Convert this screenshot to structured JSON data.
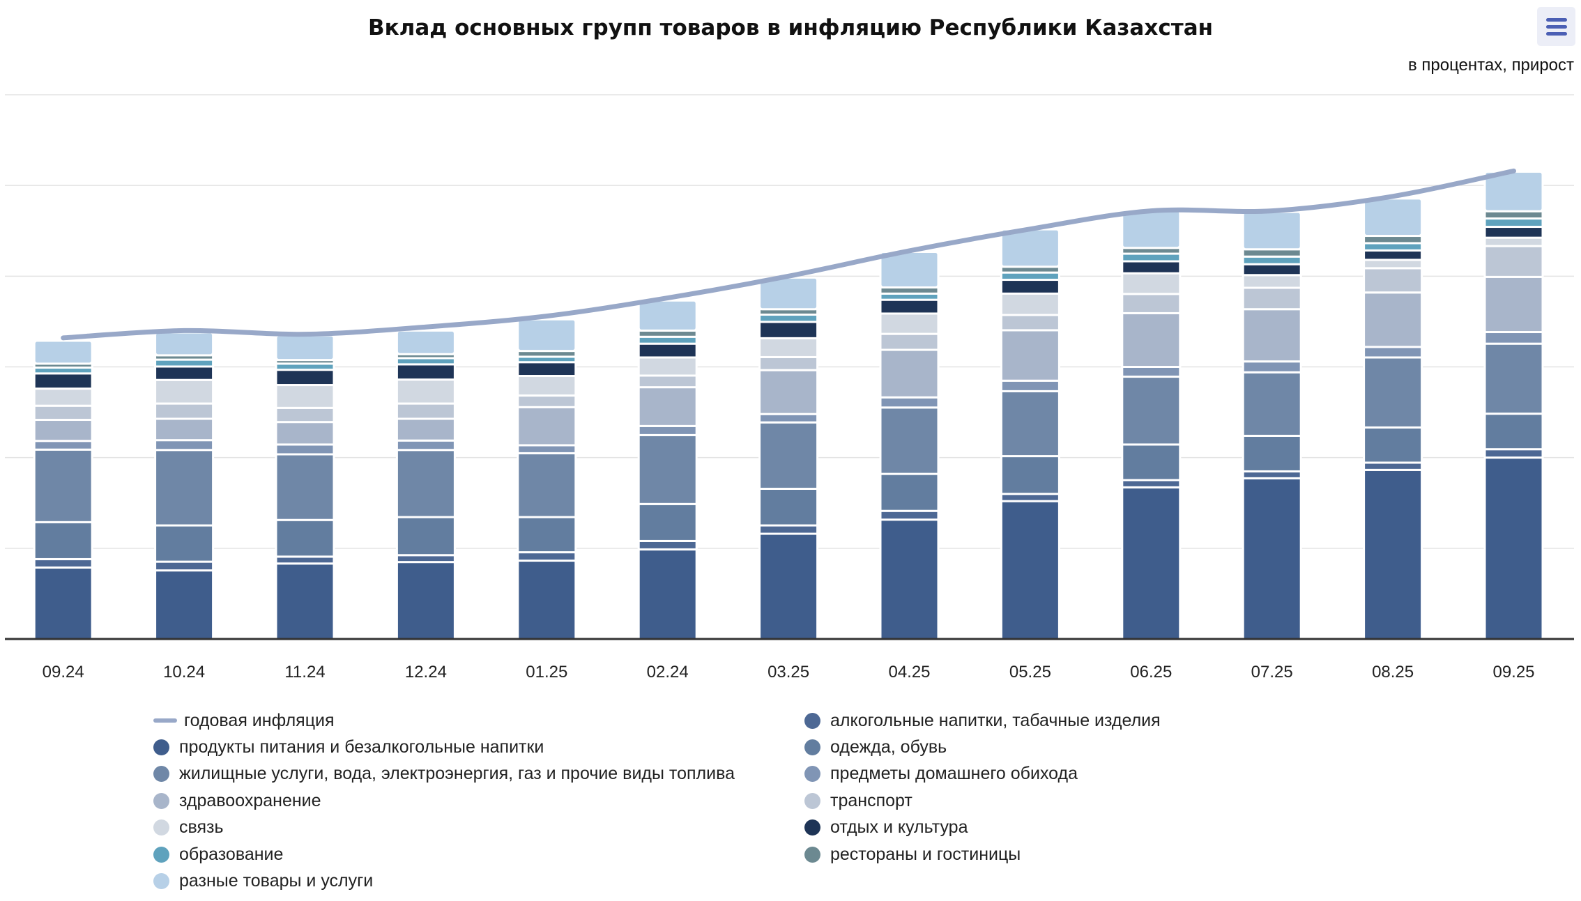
{
  "chart_data": {
    "type": "bar",
    "stacked": true,
    "title": "Вклад основных групп товаров в инфляцию Республики Казахстан",
    "subtitle": "в процентах, прирост",
    "xlabel": "",
    "ylabel": "",
    "ylim": [
      0,
      15
    ],
    "y_grid_step": 2.5,
    "grid": true,
    "legend_position": "bottom",
    "categories": [
      "09.24",
      "10.24",
      "11.24",
      "12.24",
      "01.25",
      "02.24",
      "03.25",
      "04.25",
      "05.25",
      "06.25",
      "07.25",
      "08.25",
      "09.25"
    ],
    "line_series": {
      "name": "годовая инфляция",
      "color": "#98a8c8",
      "values": [
        8.3,
        8.5,
        8.4,
        8.6,
        8.9,
        9.4,
        10.0,
        10.7,
        11.3,
        11.8,
        11.8,
        12.2,
        12.9
      ]
    },
    "series": [
      {
        "name": "продукты питания и безалкогольные напитки",
        "color": "#3f5d8c",
        "values": [
          1.97,
          1.89,
          2.08,
          2.12,
          2.16,
          2.47,
          2.9,
          3.29,
          3.8,
          4.18,
          4.43,
          4.66,
          5.0
        ]
      },
      {
        "name": "алкогольные напитки, табачные изделия",
        "color": "#4d6894",
        "values": [
          0.23,
          0.24,
          0.19,
          0.19,
          0.23,
          0.23,
          0.23,
          0.24,
          0.2,
          0.2,
          0.19,
          0.2,
          0.23
        ]
      },
      {
        "name": "одежда, обувь",
        "color": "#627d9f",
        "values": [
          1.02,
          1.0,
          1.01,
          1.05,
          0.97,
          1.02,
          1.01,
          1.02,
          1.04,
          0.98,
          0.98,
          0.97,
          0.98
        ]
      },
      {
        "name": "жилищные услуги, вода, электроэнергия, газ и прочие виды топлива",
        "color": "#6f87a7",
        "values": [
          2.0,
          2.08,
          1.81,
          1.85,
          1.76,
          1.9,
          1.83,
          1.83,
          1.79,
          1.87,
          1.75,
          1.93,
          1.93
        ]
      },
      {
        "name": "предметы домашнего обихода",
        "color": "#8095b5",
        "values": [
          0.24,
          0.27,
          0.27,
          0.26,
          0.22,
          0.25,
          0.23,
          0.28,
          0.29,
          0.27,
          0.3,
          0.29,
          0.32
        ]
      },
      {
        "name": "здравоохранение",
        "color": "#a8b5ca",
        "values": [
          0.58,
          0.59,
          0.62,
          0.6,
          1.05,
          1.07,
          1.21,
          1.31,
          1.39,
          1.48,
          1.44,
          1.5,
          1.52
        ]
      },
      {
        "name": "транспорт",
        "color": "#bcc6d5",
        "values": [
          0.39,
          0.42,
          0.39,
          0.42,
          0.32,
          0.32,
          0.36,
          0.44,
          0.42,
          0.53,
          0.59,
          0.67,
          0.85
        ]
      },
      {
        "name": "связь",
        "color": "#d1d8e1",
        "values": [
          0.47,
          0.65,
          0.63,
          0.66,
          0.54,
          0.5,
          0.52,
          0.56,
          0.59,
          0.57,
          0.35,
          0.23,
          0.23
        ]
      },
      {
        "name": "отдых и культура",
        "color": "#1e3456",
        "values": [
          0.42,
          0.37,
          0.42,
          0.42,
          0.38,
          0.38,
          0.45,
          0.38,
          0.38,
          0.33,
          0.3,
          0.26,
          0.3
        ]
      },
      {
        "name": "образование",
        "color": "#5fa2bd",
        "values": [
          0.16,
          0.19,
          0.17,
          0.17,
          0.15,
          0.19,
          0.2,
          0.17,
          0.2,
          0.21,
          0.21,
          0.2,
          0.23
        ]
      },
      {
        "name": "рестораны и гостиницы",
        "color": "#6c8991",
        "values": [
          0.11,
          0.12,
          0.1,
          0.11,
          0.16,
          0.17,
          0.15,
          0.17,
          0.16,
          0.16,
          0.2,
          0.2,
          0.2
        ]
      },
      {
        "name": "разные товары и услуги",
        "color": "#b7d0e7",
        "values": [
          0.63,
          0.63,
          0.68,
          0.65,
          0.87,
          0.83,
          0.87,
          0.98,
          1.03,
          1.03,
          1.03,
          1.03,
          1.09
        ]
      }
    ],
    "legend_order": [
      "годовая инфляция",
      "алкогольные напитки, табачные изделия",
      "продукты питания и безалкогольные напитки",
      "одежда, обувь",
      "жилищные услуги, вода, электроэнергия, газ и прочие виды топлива",
      "предметы домашнего обихода",
      "здравоохранение",
      "транспорт",
      "связь",
      "отдых и культура",
      "образование",
      "рестораны и гостиницы",
      "разные товары и услуги"
    ]
  },
  "menu_icon": "hamburger-menu-icon"
}
